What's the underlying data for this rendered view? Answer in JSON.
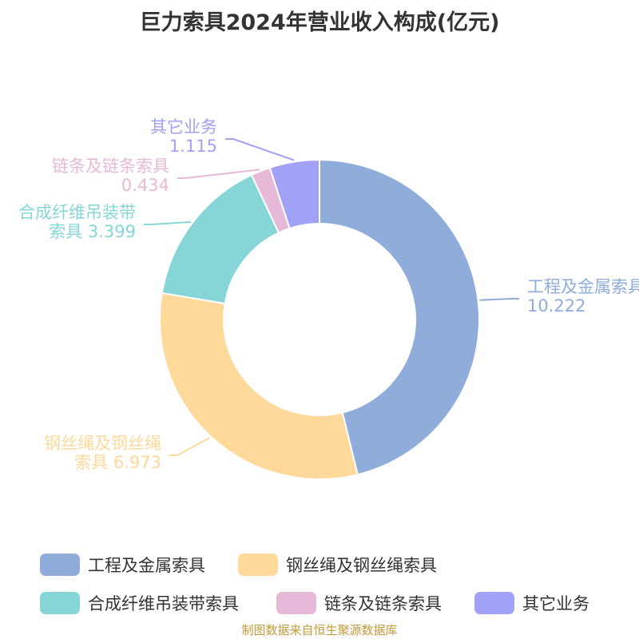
{
  "chart_data": {
    "type": "pie",
    "title": "巨力索具2024年营业收入构成(亿元)",
    "categories": [
      "工程及金属索具",
      "钢丝绳及钢丝绳索具",
      "合成纤维吊装带索具",
      "链条及链条索具",
      "其它业务"
    ],
    "values": [
      10.222,
      6.973,
      3.399,
      0.434,
      1.115
    ],
    "colors": [
      "#8facdb",
      "#ffd99a",
      "#86d6d7",
      "#e6b9d9",
      "#a1a1f5"
    ],
    "callouts": [
      {
        "lines": [
          "工程及金属索具",
          "10.222"
        ]
      },
      {
        "lines": [
          "钢丝绳及钢丝绳",
          "索具 6.973"
        ]
      },
      {
        "lines": [
          "合成纤维吊装带",
          "索具 3.399"
        ]
      },
      {
        "lines": [
          "链条及链条索具",
          "0.434"
        ]
      },
      {
        "lines": [
          "其它业务",
          "1.115"
        ]
      }
    ],
    "legend_position": "bottom"
  },
  "source": "制图数据来自恒生聚源数据库"
}
